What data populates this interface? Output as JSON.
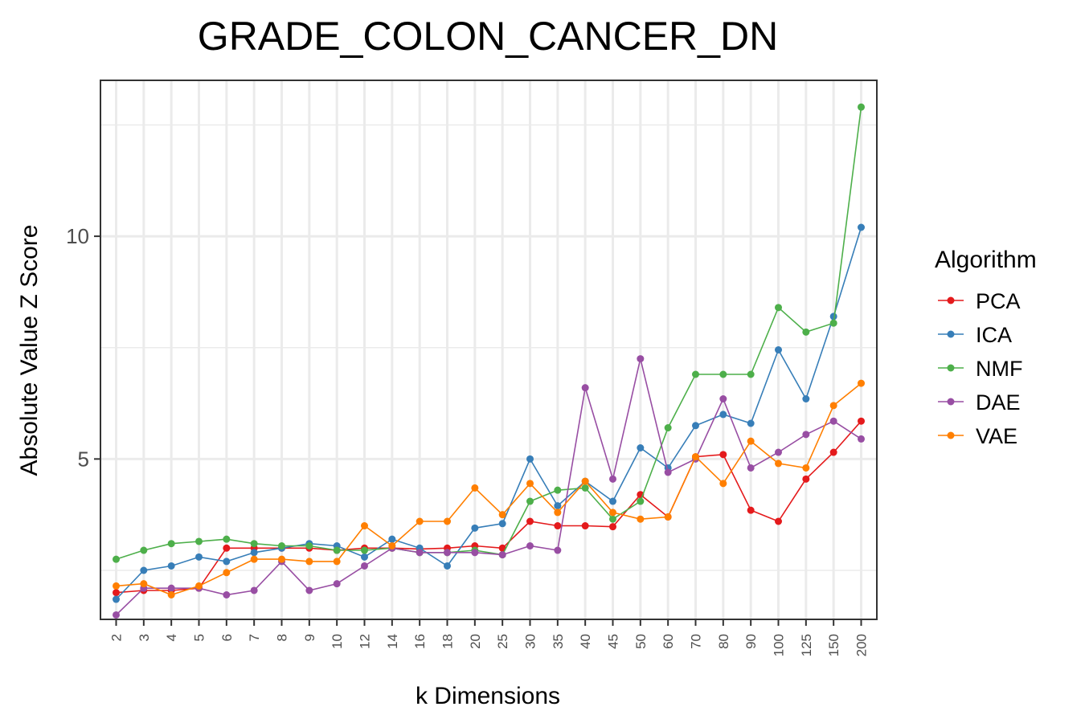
{
  "chart_data": {
    "type": "line",
    "title": "GRADE_COLON_CANCER_DN",
    "xlabel": "k Dimensions",
    "ylabel": "Absolute Value Z Score",
    "categories": [
      "2",
      "3",
      "4",
      "5",
      "6",
      "7",
      "8",
      "9",
      "10",
      "12",
      "14",
      "16",
      "18",
      "20",
      "25",
      "30",
      "35",
      "40",
      "45",
      "50",
      "60",
      "70",
      "80",
      "90",
      "100",
      "125",
      "150",
      "200"
    ],
    "ylim": [
      1.4,
      13.5
    ],
    "yticks": [
      5,
      10
    ],
    "yticks_labels": [
      "5",
      "10"
    ],
    "grid": true,
    "legend": {
      "title": "Algorithm",
      "position": "right"
    },
    "series": [
      {
        "name": "PCA",
        "color": "#E41A1C",
        "values": [
          2.0,
          2.05,
          2.05,
          2.1,
          3.0,
          3.0,
          3.0,
          3.0,
          2.95,
          3.0,
          3.0,
          2.98,
          3.0,
          3.05,
          3.0,
          3.6,
          3.5,
          3.5,
          3.48,
          4.2,
          3.7,
          5.05,
          5.1,
          3.85,
          3.6,
          4.55,
          5.15,
          5.85
        ]
      },
      {
        "name": "ICA",
        "color": "#377EB8",
        "values": [
          1.85,
          2.5,
          2.6,
          2.8,
          2.7,
          2.9,
          3.0,
          3.1,
          3.05,
          2.8,
          3.2,
          3.0,
          2.6,
          3.45,
          3.55,
          5.0,
          3.95,
          4.5,
          4.05,
          5.25,
          4.8,
          5.75,
          6.0,
          5.8,
          7.45,
          6.35,
          8.2,
          10.2
        ]
      },
      {
        "name": "NMF",
        "color": "#4DAF4A",
        "values": [
          2.75,
          2.95,
          3.1,
          3.15,
          3.2,
          3.1,
          3.05,
          3.05,
          2.95,
          2.95,
          3.0,
          2.9,
          2.9,
          2.95,
          2.85,
          4.05,
          4.3,
          4.35,
          3.65,
          4.05,
          5.7,
          6.9,
          6.9,
          6.9,
          8.4,
          7.85,
          8.05,
          12.9
        ]
      },
      {
        "name": "DAE",
        "color": "#984EA3",
        "values": [
          1.5,
          2.1,
          2.1,
          2.1,
          1.95,
          2.05,
          2.7,
          2.05,
          2.2,
          2.6,
          3.0,
          2.9,
          2.9,
          2.9,
          2.85,
          3.05,
          2.95,
          6.6,
          4.55,
          7.25,
          4.7,
          5.0,
          6.35,
          4.8,
          5.15,
          5.55,
          5.85,
          5.45
        ]
      },
      {
        "name": "VAE",
        "color": "#FF7F00",
        "values": [
          2.15,
          2.2,
          1.95,
          2.15,
          2.45,
          2.75,
          2.75,
          2.7,
          2.7,
          3.5,
          3.05,
          3.6,
          3.6,
          4.35,
          3.75,
          4.45,
          3.8,
          4.5,
          3.8,
          3.65,
          3.7,
          5.05,
          4.45,
          5.4,
          4.9,
          4.8,
          6.2,
          6.7
        ]
      }
    ]
  }
}
